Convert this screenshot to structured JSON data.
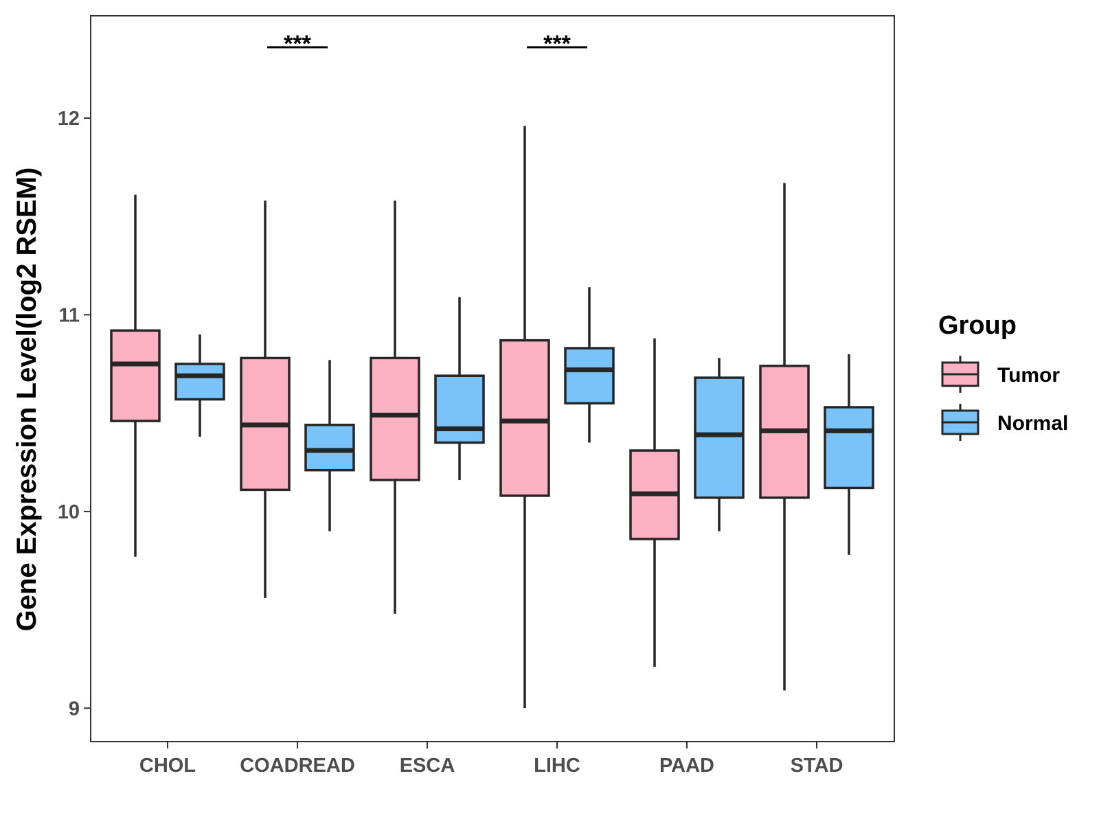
{
  "chart_data": {
    "type": "boxplot",
    "title": "",
    "xlabel": "",
    "ylabel": "Gene Expression Level(log2 RSEM)",
    "ylim": [
      8.83,
      12.52
    ],
    "yticks": [
      9,
      10,
      11,
      12
    ],
    "grid": false,
    "categories": [
      "CHOL",
      "COADREAD",
      "ESCA",
      "LIHC",
      "PAAD",
      "STAD"
    ],
    "legend": {
      "title": "Group",
      "position": "right",
      "entries": [
        {
          "name": "Tumor",
          "color": "#fbb1c2"
        },
        {
          "name": "Normal",
          "color": "#79c3fa"
        }
      ]
    },
    "series": [
      {
        "name": "Tumor",
        "color": "#fbb1c2",
        "boxes": [
          {
            "category": "CHOL",
            "whisker_low": 9.77,
            "q1": 10.46,
            "median": 10.75,
            "q3": 10.92,
            "whisker_high": 11.61
          },
          {
            "category": "COADREAD",
            "whisker_low": 9.56,
            "q1": 10.11,
            "median": 10.44,
            "q3": 10.78,
            "whisker_high": 11.58
          },
          {
            "category": "ESCA",
            "whisker_low": 9.48,
            "q1": 10.16,
            "median": 10.49,
            "q3": 10.78,
            "whisker_high": 11.58
          },
          {
            "category": "LIHC",
            "whisker_low": 9.0,
            "q1": 10.08,
            "median": 10.46,
            "q3": 10.87,
            "whisker_high": 11.96
          },
          {
            "category": "PAAD",
            "whisker_low": 9.21,
            "q1": 9.86,
            "median": 10.09,
            "q3": 10.31,
            "whisker_high": 10.88
          },
          {
            "category": "STAD",
            "whisker_low": 9.09,
            "q1": 10.07,
            "median": 10.41,
            "q3": 10.74,
            "whisker_high": 11.67
          }
        ]
      },
      {
        "name": "Normal",
        "color": "#79c3fa",
        "boxes": [
          {
            "category": "CHOL",
            "whisker_low": 10.38,
            "q1": 10.57,
            "median": 10.69,
            "q3": 10.75,
            "whisker_high": 10.9
          },
          {
            "category": "COADREAD",
            "whisker_low": 9.9,
            "q1": 10.21,
            "median": 10.31,
            "q3": 10.44,
            "whisker_high": 10.77
          },
          {
            "category": "ESCA",
            "whisker_low": 10.16,
            "q1": 10.35,
            "median": 10.42,
            "q3": 10.69,
            "whisker_high": 11.09
          },
          {
            "category": "LIHC",
            "whisker_low": 10.35,
            "q1": 10.55,
            "median": 10.72,
            "q3": 10.83,
            "whisker_high": 11.14
          },
          {
            "category": "PAAD",
            "whisker_low": 9.9,
            "q1": 10.07,
            "median": 10.39,
            "q3": 10.68,
            "whisker_high": 10.78
          },
          {
            "category": "STAD",
            "whisker_low": 9.78,
            "q1": 10.12,
            "median": 10.41,
            "q3": 10.53,
            "whisker_high": 10.8
          }
        ]
      }
    ],
    "annotations": [
      {
        "category": "COADREAD",
        "text": "***",
        "y": 12.36
      },
      {
        "category": "LIHC",
        "text": "***",
        "y": 12.36
      }
    ]
  }
}
